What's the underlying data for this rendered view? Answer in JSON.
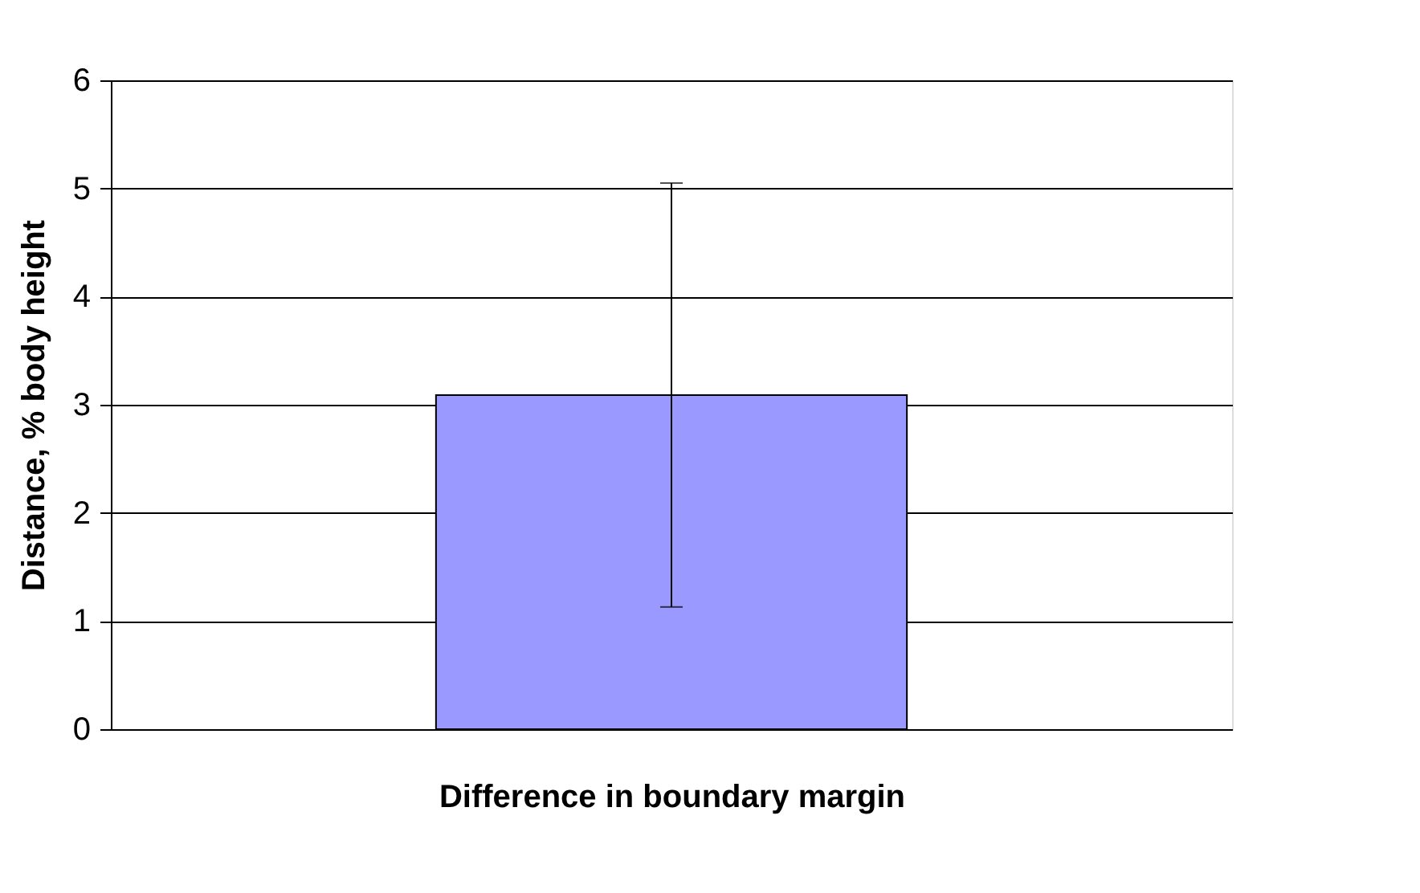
{
  "chart_data": {
    "type": "bar",
    "xlabel": "Difference in boundary margin",
    "ylabel": "Distance, % body height",
    "categories": [
      null
    ],
    "series": [
      {
        "color": "#9999ff",
        "values": [
          3.09
        ],
        "errors": [
          1.96
        ]
      }
    ],
    "ylim": [
      0,
      6
    ],
    "yticks": [
      0,
      1,
      2,
      3,
      4,
      5,
      6
    ],
    "grid": "y"
  }
}
